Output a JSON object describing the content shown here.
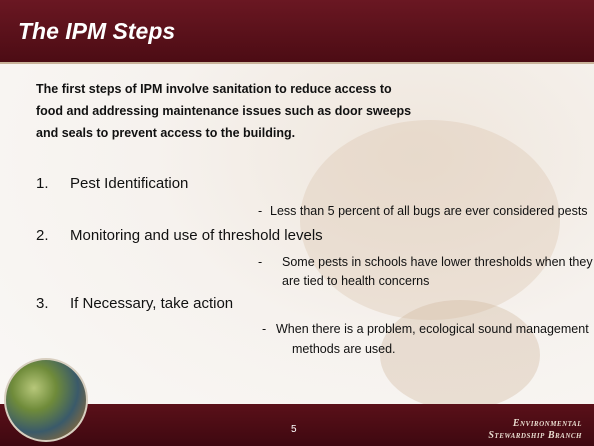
{
  "header": {
    "title": "The IPM Steps"
  },
  "intro": [
    "The first steps of IPM involve sanitation to reduce access to",
    "food and addressing maintenance issues such as door sweeps",
    "and seals to prevent access to the building."
  ],
  "items": [
    {
      "number": "1.",
      "text": "Pest Identification",
      "sub_dash": "-",
      "sub_lines": [
        "Less than 5 percent of all bugs are ever considered pests"
      ]
    },
    {
      "number": "2.",
      "text": "Monitoring and use of threshold levels",
      "sub_dash": "-",
      "sub_lines": [
        "Some pests in schools have lower thresholds when they",
        "are tied to health concerns"
      ]
    },
    {
      "number": "3.",
      "text": "If Necessary, take action",
      "sub_dash": "-",
      "sub_lines": [
        "When there is a problem, ecological sound management",
        "methods are used."
      ]
    }
  ],
  "footer": {
    "page": "5",
    "org": [
      "Environmental",
      "Stewardship Branch"
    ]
  }
}
